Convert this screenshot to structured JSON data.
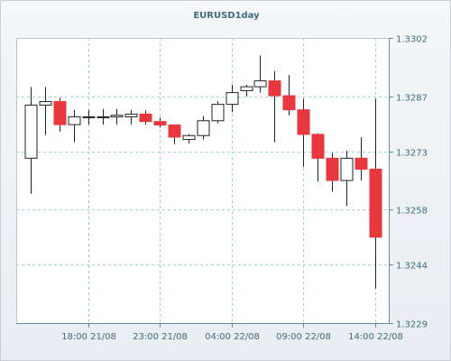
{
  "chart_data": {
    "type": "candlestick",
    "title": "EURUSD1day",
    "xlabel": "",
    "ylabel": "",
    "ylim": [
      1.3229,
      1.3302
    ],
    "y_ticks": [
      1.3302,
      1.3287,
      1.3273,
      1.3258,
      1.3244,
      1.3229
    ],
    "y_tick_labels": [
      "1.3302",
      "1.3287",
      "1.3273",
      "1.3258",
      "1.3244",
      "1.3229"
    ],
    "x_ticks": [
      "18:00 21/08",
      "23:00 21/08",
      "04:00 22/08",
      "09:00 22/08",
      "14:00 22/08"
    ],
    "x_tick_bar_index": [
      4,
      9,
      14,
      19,
      24
    ],
    "grid": true,
    "axis_position": "right",
    "colors": {
      "up": "#ffffff",
      "down": "#e8373d",
      "grid": "#9fd3d6",
      "axis": "#5e8fa0",
      "text": "#3c6e83"
    },
    "candles": [
      {
        "o": 1.32712,
        "h": 1.32894,
        "l": 1.32621,
        "c": 1.32848
      },
      {
        "o": 1.32848,
        "h": 1.32894,
        "l": 1.32771,
        "c": 1.32857
      },
      {
        "o": 1.32857,
        "h": 1.32866,
        "l": 1.3278,
        "c": 1.32798
      },
      {
        "o": 1.32798,
        "h": 1.32836,
        "l": 1.32753,
        "c": 1.32818
      },
      {
        "o": 1.32818,
        "h": 1.32836,
        "l": 1.32798,
        "c": 1.32818
      },
      {
        "o": 1.32818,
        "h": 1.32838,
        "l": 1.32798,
        "c": 1.32818
      },
      {
        "o": 1.32818,
        "h": 1.32838,
        "l": 1.32798,
        "c": 1.32822
      },
      {
        "o": 1.32818,
        "h": 1.32836,
        "l": 1.32798,
        "c": 1.32825
      },
      {
        "o": 1.32825,
        "h": 1.32834,
        "l": 1.32798,
        "c": 1.32806
      },
      {
        "o": 1.32806,
        "h": 1.32816,
        "l": 1.3279,
        "c": 1.32797
      },
      {
        "o": 1.32797,
        "h": 1.32797,
        "l": 1.32748,
        "c": 1.32766
      },
      {
        "o": 1.3276,
        "h": 1.32774,
        "l": 1.3275,
        "c": 1.3277
      },
      {
        "o": 1.3277,
        "h": 1.3282,
        "l": 1.3276,
        "c": 1.32808
      },
      {
        "o": 1.32808,
        "h": 1.32858,
        "l": 1.32801,
        "c": 1.3285
      },
      {
        "o": 1.3285,
        "h": 1.329,
        "l": 1.3283,
        "c": 1.3288
      },
      {
        "o": 1.32885,
        "h": 1.329,
        "l": 1.3287,
        "c": 1.32895
      },
      {
        "o": 1.32895,
        "h": 1.32975,
        "l": 1.3288,
        "c": 1.3291
      },
      {
        "o": 1.3291,
        "h": 1.32935,
        "l": 1.32753,
        "c": 1.32872
      },
      {
        "o": 1.32872,
        "h": 1.32925,
        "l": 1.32822,
        "c": 1.32836
      },
      {
        "o": 1.32836,
        "h": 1.32864,
        "l": 1.3269,
        "c": 1.32773
      },
      {
        "o": 1.32773,
        "h": 1.32776,
        "l": 1.32652,
        "c": 1.32712
      },
      {
        "o": 1.32712,
        "h": 1.32726,
        "l": 1.32627,
        "c": 1.32655
      },
      {
        "o": 1.32655,
        "h": 1.32731,
        "l": 1.3259,
        "c": 1.32712
      },
      {
        "o": 1.32712,
        "h": 1.32766,
        "l": 1.32655,
        "c": 1.32684
      },
      {
        "o": 1.32684,
        "h": 1.32864,
        "l": 1.32379,
        "c": 1.3251
      }
    ]
  }
}
